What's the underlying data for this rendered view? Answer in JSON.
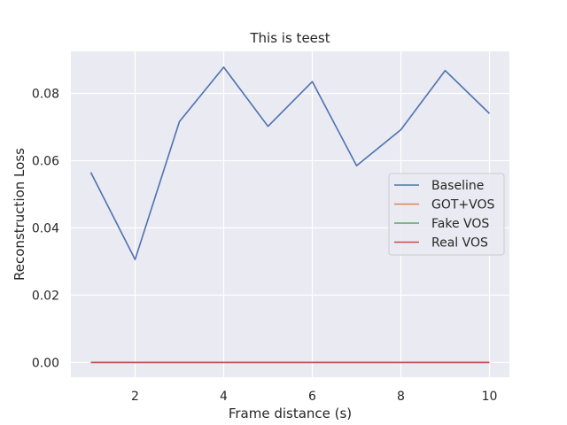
{
  "chart_data": {
    "type": "line",
    "title": "This is teest",
    "xlabel": "Frame distance (s)",
    "ylabel": "Reconstruction Loss",
    "x": [
      1,
      2,
      3,
      4,
      5,
      6,
      7,
      8,
      9,
      10
    ],
    "xlim": [
      0.55,
      10.45
    ],
    "ylim": [
      -0.0044,
      0.0925
    ],
    "xticks": [
      2,
      4,
      6,
      8,
      10
    ],
    "yticks": [
      0.0,
      0.02,
      0.04,
      0.06,
      0.08
    ],
    "ytick_labels": [
      "0.00",
      "0.02",
      "0.04",
      "0.06",
      "0.08"
    ],
    "grid": true,
    "legend_position": "center-right",
    "background": "#eaeaf2",
    "series": [
      {
        "name": "Baseline",
        "color": "#4c72b0",
        "values": [
          0.0565,
          0.0306,
          0.0716,
          0.0878,
          0.0702,
          0.0835,
          0.0585,
          0.0692,
          0.0868,
          0.074
        ]
      },
      {
        "name": "GOT+VOS",
        "color": "#dd8452",
        "values": [
          0,
          0,
          0,
          0,
          0,
          0,
          0,
          0,
          0,
          0
        ]
      },
      {
        "name": "Fake VOS",
        "color": "#55a868",
        "values": [
          0,
          0,
          0,
          0,
          0,
          0,
          0,
          0,
          0,
          0
        ]
      },
      {
        "name": "Real VOS",
        "color": "#c44e52",
        "values": [
          0,
          0,
          0,
          0,
          0,
          0,
          0,
          0,
          0,
          0
        ]
      }
    ]
  }
}
